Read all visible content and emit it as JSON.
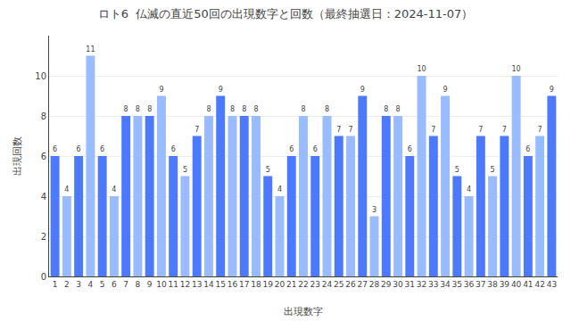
{
  "chart_data": {
    "type": "bar",
    "title": "ロト6  仏滅の直近50回の出現数字と回数（最終抽選日：2024-11-07）",
    "xlabel": "出現数字",
    "ylabel": "出現回数",
    "categories": [
      1,
      2,
      3,
      4,
      5,
      6,
      7,
      8,
      9,
      10,
      11,
      12,
      13,
      14,
      15,
      16,
      17,
      18,
      19,
      20,
      21,
      22,
      23,
      24,
      25,
      26,
      27,
      28,
      29,
      30,
      31,
      32,
      33,
      34,
      35,
      36,
      37,
      38,
      39,
      40,
      41,
      42,
      43
    ],
    "values": [
      6,
      4,
      6,
      11,
      6,
      4,
      8,
      8,
      8,
      9,
      6,
      5,
      7,
      8,
      9,
      8,
      8,
      8,
      5,
      4,
      6,
      8,
      6,
      8,
      7,
      7,
      9,
      3,
      8,
      8,
      6,
      10,
      7,
      9,
      5,
      4,
      7,
      5,
      7,
      10,
      6,
      7,
      9
    ],
    "colors": [
      "#4d79ff",
      "#99bbff",
      "#4d79ff",
      "#99bbff",
      "#4d79ff",
      "#99bbff",
      "#4d79ff",
      "#99bbff",
      "#4d79ff",
      "#99bbff",
      "#4d79ff",
      "#99bbff",
      "#4d79ff",
      "#99bbff",
      "#4d79ff",
      "#99bbff",
      "#4d79ff",
      "#99bbff",
      "#4d79ff",
      "#99bbff",
      "#4d79ff",
      "#99bbff",
      "#4d79ff",
      "#99bbff",
      "#4d79ff",
      "#99bbff",
      "#4d79ff",
      "#99bbff",
      "#4d79ff",
      "#99bbff",
      "#4d79ff",
      "#99bbff",
      "#4d79ff",
      "#99bbff",
      "#4d79ff",
      "#99bbff",
      "#4d79ff",
      "#99bbff",
      "#4d79ff",
      "#99bbff",
      "#4d79ff",
      "#99bbff",
      "#4d79ff"
    ],
    "ylim": [
      0,
      12
    ],
    "yticks": [
      0,
      2,
      4,
      6,
      8,
      10
    ],
    "grid": true,
    "data_labels": true
  }
}
